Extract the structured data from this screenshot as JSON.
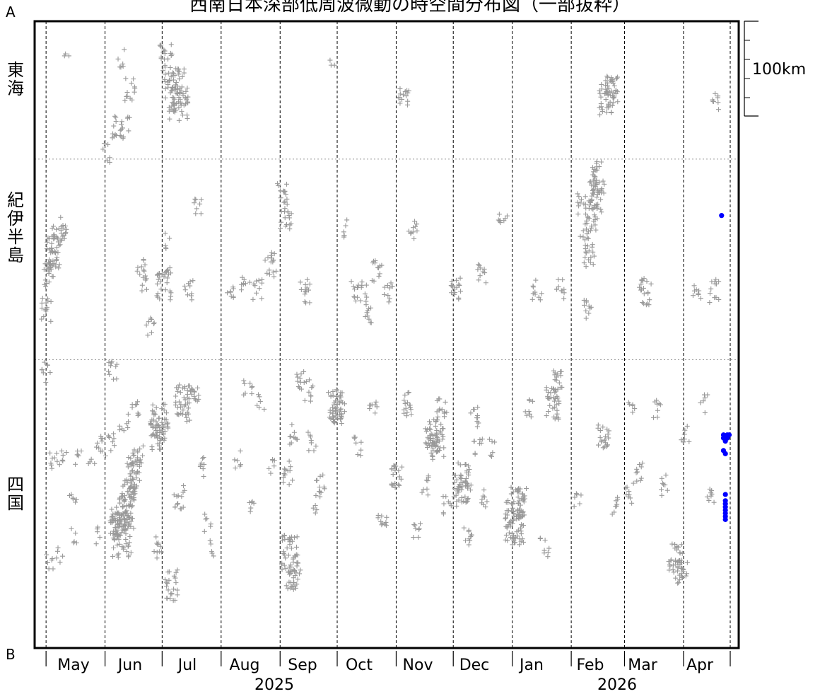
{
  "chart_data": {
    "type": "scatter",
    "title": "西南日本深部低周波微動の時空間分布図（一部抜粋）",
    "xlabel": "",
    "ylabel": "",
    "end_labels": {
      "top": "A",
      "bottom": "B"
    },
    "regions": [
      "東海",
      "紀伊半島",
      "四国"
    ],
    "months": [
      "May",
      "Jun",
      "Jul",
      "Aug",
      "Sep",
      "Oct",
      "Nov",
      "Dec",
      "Jan",
      "Feb",
      "Mar",
      "Apr"
    ],
    "years": [
      "2025",
      "2026"
    ],
    "scale_bar": {
      "label": "100km",
      "length_km": 100
    },
    "xlim": [
      "2025-04-25",
      "2026-04-30"
    ],
    "colors": {
      "past": "#999999",
      "recent": "#0000ff"
    },
    "series": [
      {
        "marker": "plus",
        "color": "#999999",
        "clusters": [
          {
            "d": "2025-05-01",
            "pos": 0.46,
            "n": 14
          },
          {
            "d": "2025-05-03",
            "pos": 0.4,
            "n": 22
          },
          {
            "d": "2025-05-05",
            "pos": 0.37,
            "n": 26
          },
          {
            "d": "2025-05-07",
            "pos": 0.35,
            "n": 20
          },
          {
            "d": "2025-05-09",
            "pos": 0.33,
            "n": 14
          },
          {
            "d": "2025-05-01",
            "pos": 0.56,
            "n": 8
          },
          {
            "d": "2025-05-05",
            "pos": 0.7,
            "n": 8
          },
          {
            "d": "2025-05-10",
            "pos": 0.7,
            "n": 6
          },
          {
            "d": "2025-05-18",
            "pos": 0.7,
            "n": 6
          },
          {
            "d": "2025-05-03",
            "pos": 0.86,
            "n": 6
          },
          {
            "d": "2025-05-08",
            "pos": 0.85,
            "n": 5
          },
          {
            "d": "2025-05-12",
            "pos": 0.05,
            "n": 3
          },
          {
            "d": "2025-05-15",
            "pos": 0.76,
            "n": 6
          },
          {
            "d": "2025-05-16",
            "pos": 0.82,
            "n": 5
          },
          {
            "d": "2025-05-25",
            "pos": 0.71,
            "n": 4
          },
          {
            "d": "2025-05-28",
            "pos": 0.82,
            "n": 5
          },
          {
            "d": "2025-05-30",
            "pos": 0.68,
            "n": 10
          },
          {
            "d": "2025-06-02",
            "pos": 0.21,
            "n": 6
          },
          {
            "d": "2025-06-05",
            "pos": 0.67,
            "n": 8
          },
          {
            "d": "2025-06-08",
            "pos": 0.8,
            "n": 40
          },
          {
            "d": "2025-06-10",
            "pos": 0.82,
            "n": 60
          },
          {
            "d": "2025-06-12",
            "pos": 0.78,
            "n": 40
          },
          {
            "d": "2025-06-14",
            "pos": 0.75,
            "n": 30
          },
          {
            "d": "2025-06-16",
            "pos": 0.72,
            "n": 25
          },
          {
            "d": "2025-06-18",
            "pos": 0.7,
            "n": 20
          },
          {
            "d": "2025-06-07",
            "pos": 0.17,
            "n": 12
          },
          {
            "d": "2025-06-09",
            "pos": 0.06,
            "n": 6
          },
          {
            "d": "2025-06-12",
            "pos": 0.17,
            "n": 10
          },
          {
            "d": "2025-06-14",
            "pos": 0.11,
            "n": 12
          },
          {
            "d": "2025-06-20",
            "pos": 0.39,
            "n": 10
          },
          {
            "d": "2025-06-05",
            "pos": 0.56,
            "n": 10
          },
          {
            "d": "2025-06-11",
            "pos": 0.64,
            "n": 8
          },
          {
            "d": "2025-06-17",
            "pos": 0.62,
            "n": 8
          },
          {
            "d": "2025-06-21",
            "pos": 0.42,
            "n": 6
          },
          {
            "d": "2025-06-25",
            "pos": 0.49,
            "n": 8
          },
          {
            "d": "2025-06-28",
            "pos": 0.66,
            "n": 30
          },
          {
            "d": "2025-06-30",
            "pos": 0.64,
            "n": 40
          },
          {
            "d": "2025-07-02",
            "pos": 0.42,
            "n": 30
          },
          {
            "d": "2025-06-29",
            "pos": 0.84,
            "n": 10
          },
          {
            "d": "2025-07-03",
            "pos": 0.06,
            "n": 20
          },
          {
            "d": "2025-07-05",
            "pos": 0.1,
            "n": 20
          },
          {
            "d": "2025-07-07",
            "pos": 0.14,
            "n": 16
          },
          {
            "d": "2025-07-09",
            "pos": 0.1,
            "n": 26
          },
          {
            "d": "2025-07-11",
            "pos": 0.13,
            "n": 30
          },
          {
            "d": "2025-07-12",
            "pos": 0.61,
            "n": 40
          },
          {
            "d": "2025-07-10",
            "pos": 0.76,
            "n": 14
          },
          {
            "d": "2025-07-06",
            "pos": 0.9,
            "n": 24
          },
          {
            "d": "2025-07-04",
            "pos": 0.35,
            "n": 5
          },
          {
            "d": "2025-07-15",
            "pos": 0.43,
            "n": 10
          },
          {
            "d": "2025-07-18",
            "pos": 0.59,
            "n": 8
          },
          {
            "d": "2025-07-20",
            "pos": 0.3,
            "n": 8
          },
          {
            "d": "2025-07-22",
            "pos": 0.71,
            "n": 8
          },
          {
            "d": "2025-07-25",
            "pos": 0.8,
            "n": 6
          },
          {
            "d": "2025-07-18",
            "pos": 0.6,
            "n": 6
          },
          {
            "d": "2025-07-28",
            "pos": 0.84,
            "n": 5
          },
          {
            "d": "2025-08-06",
            "pos": 0.43,
            "n": 8
          },
          {
            "d": "2025-08-10",
            "pos": 0.7,
            "n": 6
          },
          {
            "d": "2025-08-14",
            "pos": 0.42,
            "n": 8
          },
          {
            "d": "2025-08-15",
            "pos": 0.59,
            "n": 8
          },
          {
            "d": "2025-08-18",
            "pos": 0.77,
            "n": 6
          },
          {
            "d": "2025-08-20",
            "pos": 0.43,
            "n": 10
          },
          {
            "d": "2025-08-22",
            "pos": 0.61,
            "n": 6
          },
          {
            "d": "2025-08-27",
            "pos": 0.39,
            "n": 16
          },
          {
            "d": "2025-08-28",
            "pos": 0.71,
            "n": 6
          },
          {
            "d": "2025-09-02",
            "pos": 0.27,
            "n": 12
          },
          {
            "d": "2025-09-04",
            "pos": 0.31,
            "n": 18
          },
          {
            "d": "2025-09-06",
            "pos": 0.85,
            "n": 40
          },
          {
            "d": "2025-09-08",
            "pos": 0.88,
            "n": 30
          },
          {
            "d": "2025-09-05",
            "pos": 0.72,
            "n": 12
          },
          {
            "d": "2025-09-08",
            "pos": 0.66,
            "n": 10
          },
          {
            "d": "2025-09-12",
            "pos": 0.57,
            "n": 10
          },
          {
            "d": "2025-09-14",
            "pos": 0.43,
            "n": 14
          },
          {
            "d": "2025-09-16",
            "pos": 0.59,
            "n": 10
          },
          {
            "d": "2025-09-18",
            "pos": 0.67,
            "n": 8
          },
          {
            "d": "2025-09-20",
            "pos": 0.77,
            "n": 6
          },
          {
            "d": "2025-09-22",
            "pos": 0.74,
            "n": 10
          },
          {
            "d": "2025-09-28",
            "pos": 0.07,
            "n": 3
          },
          {
            "d": "2025-09-30",
            "pos": 0.61,
            "n": 30
          },
          {
            "d": "2025-10-02",
            "pos": 0.62,
            "n": 26
          },
          {
            "d": "2025-10-06",
            "pos": 0.33,
            "n": 6
          },
          {
            "d": "2025-10-10",
            "pos": 0.43,
            "n": 8
          },
          {
            "d": "2025-10-12",
            "pos": 0.68,
            "n": 8
          },
          {
            "d": "2025-10-14",
            "pos": 0.43,
            "n": 10
          },
          {
            "d": "2025-10-18",
            "pos": 0.47,
            "n": 10
          },
          {
            "d": "2025-10-20",
            "pos": 0.61,
            "n": 8
          },
          {
            "d": "2025-10-22",
            "pos": 0.4,
            "n": 12
          },
          {
            "d": "2025-10-25",
            "pos": 0.79,
            "n": 10
          },
          {
            "d": "2025-10-28",
            "pos": 0.43,
            "n": 10
          },
          {
            "d": "2025-11-01",
            "pos": 0.73,
            "n": 20
          },
          {
            "d": "2025-11-05",
            "pos": 0.12,
            "n": 14
          },
          {
            "d": "2025-11-07",
            "pos": 0.61,
            "n": 16
          },
          {
            "d": "2025-11-10",
            "pos": 0.33,
            "n": 10
          },
          {
            "d": "2025-11-12",
            "pos": 0.81,
            "n": 8
          },
          {
            "d": "2025-11-16",
            "pos": 0.74,
            "n": 8
          },
          {
            "d": "2025-11-20",
            "pos": 0.66,
            "n": 30
          },
          {
            "d": "2025-11-22",
            "pos": 0.67,
            "n": 40
          },
          {
            "d": "2025-11-25",
            "pos": 0.62,
            "n": 14
          },
          {
            "d": "2025-11-28",
            "pos": 0.77,
            "n": 8
          },
          {
            "d": "2025-12-02",
            "pos": 0.43,
            "n": 16
          },
          {
            "d": "2025-12-05",
            "pos": 0.75,
            "n": 30
          },
          {
            "d": "2025-12-07",
            "pos": 0.73,
            "n": 30
          },
          {
            "d": "2025-12-09",
            "pos": 0.82,
            "n": 10
          },
          {
            "d": "2025-12-12",
            "pos": 0.63,
            "n": 10
          },
          {
            "d": "2025-12-14",
            "pos": 0.68,
            "n": 8
          },
          {
            "d": "2025-12-16",
            "pos": 0.4,
            "n": 10
          },
          {
            "d": "2025-12-18",
            "pos": 0.76,
            "n": 8
          },
          {
            "d": "2025-12-22",
            "pos": 0.68,
            "n": 6
          },
          {
            "d": "2025-12-27",
            "pos": 0.31,
            "n": 8
          },
          {
            "d": "2026-01-02",
            "pos": 0.8,
            "n": 60
          },
          {
            "d": "2026-01-04",
            "pos": 0.77,
            "n": 30
          },
          {
            "d": "2026-01-06",
            "pos": 0.76,
            "n": 16
          },
          {
            "d": "2026-01-10",
            "pos": 0.62,
            "n": 8
          },
          {
            "d": "2026-01-14",
            "pos": 0.43,
            "n": 10
          },
          {
            "d": "2026-01-18",
            "pos": 0.84,
            "n": 8
          },
          {
            "d": "2026-01-22",
            "pos": 0.61,
            "n": 30
          },
          {
            "d": "2026-01-24",
            "pos": 0.58,
            "n": 20
          },
          {
            "d": "2026-01-26",
            "pos": 0.43,
            "n": 10
          },
          {
            "d": "2026-02-04",
            "pos": 0.76,
            "n": 6
          },
          {
            "d": "2026-02-06",
            "pos": 0.29,
            "n": 10
          },
          {
            "d": "2026-02-08",
            "pos": 0.33,
            "n": 10
          },
          {
            "d": "2026-02-10",
            "pos": 0.37,
            "n": 18
          },
          {
            "d": "2026-02-12",
            "pos": 0.31,
            "n": 24
          },
          {
            "d": "2026-02-14",
            "pos": 0.28,
            "n": 30
          },
          {
            "d": "2026-02-16",
            "pos": 0.25,
            "n": 30
          },
          {
            "d": "2026-02-18",
            "pos": 0.66,
            "n": 20
          },
          {
            "d": "2026-02-20",
            "pos": 0.12,
            "n": 40
          },
          {
            "d": "2026-02-22",
            "pos": 0.11,
            "n": 24
          },
          {
            "d": "2026-02-24",
            "pos": 0.77,
            "n": 8
          },
          {
            "d": "2026-02-10",
            "pos": 0.46,
            "n": 10
          },
          {
            "d": "2026-03-03",
            "pos": 0.76,
            "n": 8
          },
          {
            "d": "2026-03-05",
            "pos": 0.61,
            "n": 6
          },
          {
            "d": "2026-03-08",
            "pos": 0.72,
            "n": 10
          },
          {
            "d": "2026-03-12",
            "pos": 0.43,
            "n": 20
          },
          {
            "d": "2026-03-18",
            "pos": 0.62,
            "n": 8
          },
          {
            "d": "2026-03-22",
            "pos": 0.74,
            "n": 8
          },
          {
            "d": "2026-03-28",
            "pos": 0.86,
            "n": 30
          },
          {
            "d": "2026-03-31",
            "pos": 0.88,
            "n": 20
          },
          {
            "d": "2026-04-02",
            "pos": 0.66,
            "n": 8
          },
          {
            "d": "2026-04-08",
            "pos": 0.43,
            "n": 8
          },
          {
            "d": "2026-04-12",
            "pos": 0.61,
            "n": 6
          },
          {
            "d": "2026-04-15",
            "pos": 0.76,
            "n": 8
          },
          {
            "d": "2026-04-17",
            "pos": 0.43,
            "n": 12
          },
          {
            "d": "2026-04-18",
            "pos": 0.13,
            "n": 8
          }
        ]
      },
      {
        "marker": "dot",
        "color": "#0000ff",
        "points": [
          {
            "d": "2026-04-21",
            "pos": 0.31
          },
          {
            "d": "2026-04-22",
            "pos": 0.66
          },
          {
            "d": "2026-04-22",
            "pos": 0.665
          },
          {
            "d": "2026-04-23",
            "pos": 0.67
          },
          {
            "d": "2026-04-24",
            "pos": 0.66
          },
          {
            "d": "2026-04-22",
            "pos": 0.685
          },
          {
            "d": "2026-04-23",
            "pos": 0.69
          },
          {
            "d": "2026-04-24",
            "pos": 0.665
          },
          {
            "d": "2026-04-25",
            "pos": 0.66
          },
          {
            "d": "2026-04-23",
            "pos": 0.765
          },
          {
            "d": "2026-04-23",
            "pos": 0.77
          },
          {
            "d": "2026-04-23",
            "pos": 0.775
          },
          {
            "d": "2026-04-23",
            "pos": 0.78
          },
          {
            "d": "2026-04-23",
            "pos": 0.785
          },
          {
            "d": "2026-04-23",
            "pos": 0.79
          },
          {
            "d": "2026-04-23",
            "pos": 0.795
          },
          {
            "d": "2026-04-23",
            "pos": 0.755
          }
        ]
      }
    ]
  }
}
